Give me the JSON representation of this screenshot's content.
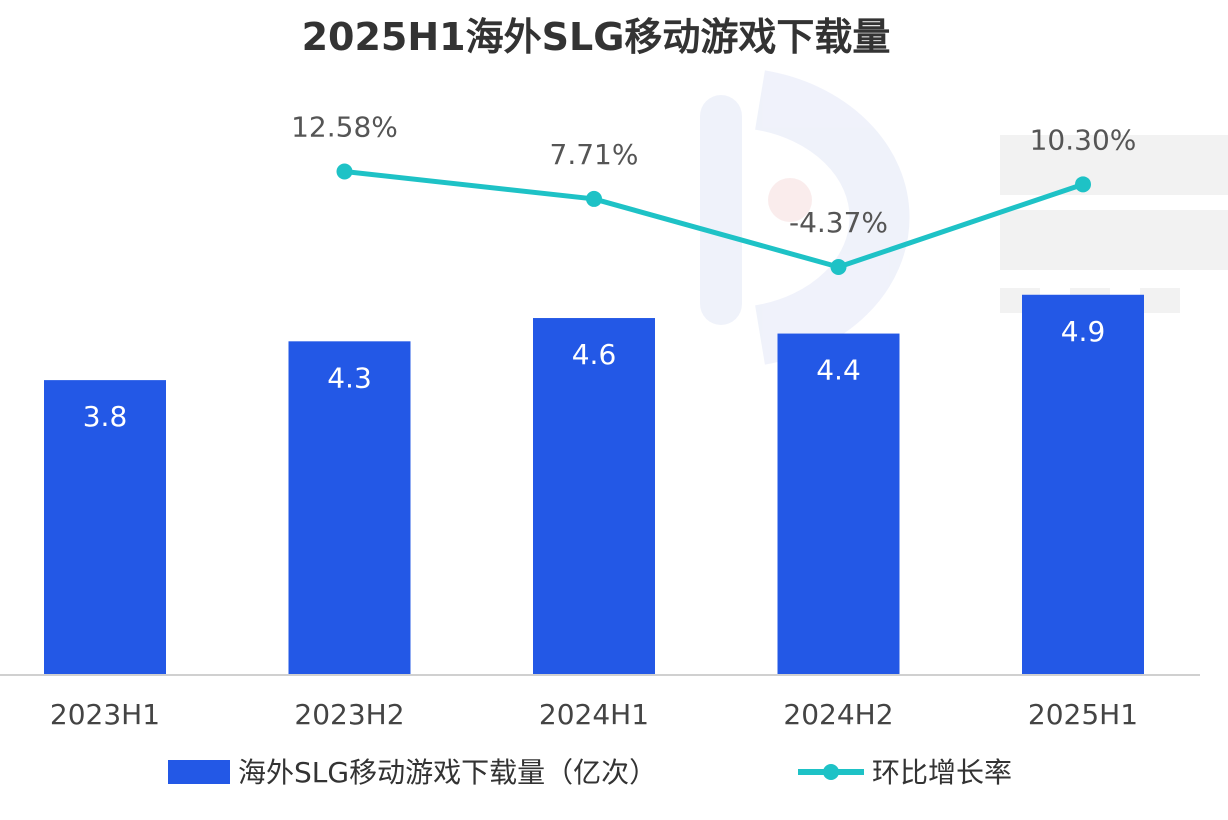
{
  "chart_data": {
    "type": "bar",
    "title": "2025H1海外SLG移动游戏下载量",
    "categories": [
      "2023H1",
      "2023H2",
      "2024H1",
      "2024H2",
      "2025H1"
    ],
    "series": [
      {
        "name": "海外SLG移动游戏下载量（亿次）",
        "kind": "bar",
        "values": [
          3.8,
          4.3,
          4.6,
          4.4,
          4.9
        ],
        "labels": [
          "3.8",
          "4.3",
          "4.6",
          "4.4",
          "4.9"
        ],
        "color": "#2358e6"
      },
      {
        "name": "环比增长率",
        "kind": "line",
        "values": [
          null,
          12.58,
          7.71,
          -4.37,
          10.3
        ],
        "labels": [
          "",
          "12.58%",
          "7.71%",
          "-4.37%",
          "10.30%"
        ],
        "color": "#1ec2c6"
      }
    ],
    "ylim_bar": [
      0,
      5.1
    ],
    "ylim_line": [
      -20,
      15
    ],
    "legend_position": "bottom"
  }
}
